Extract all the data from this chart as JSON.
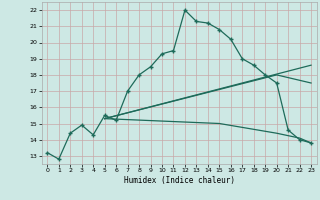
{
  "xlabel": "Humidex (Indice chaleur)",
  "bg_color": "#cde8e4",
  "grid_color": "#b8d8d2",
  "line_color": "#1e6b5a",
  "xlim": [
    -0.5,
    23.5
  ],
  "ylim": [
    12.5,
    22.5
  ],
  "xticks": [
    0,
    1,
    2,
    3,
    4,
    5,
    6,
    7,
    8,
    9,
    10,
    11,
    12,
    13,
    14,
    15,
    16,
    17,
    18,
    19,
    20,
    21,
    22,
    23
  ],
  "yticks": [
    13,
    14,
    15,
    16,
    17,
    18,
    19,
    20,
    21,
    22
  ],
  "line1_x": [
    0,
    1,
    2,
    3,
    4,
    5,
    6,
    7,
    8,
    9,
    10,
    11,
    12,
    13,
    14,
    15,
    16,
    17,
    18,
    19,
    20,
    21,
    22,
    23
  ],
  "line1_y": [
    13.2,
    12.8,
    14.4,
    14.9,
    14.3,
    15.5,
    15.2,
    17.0,
    18.0,
    18.5,
    19.3,
    19.5,
    22.0,
    21.3,
    21.2,
    20.8,
    20.2,
    19.0,
    18.6,
    18.0,
    17.5,
    14.6,
    14.0,
    13.8
  ],
  "line2_x": [
    5,
    23
  ],
  "line2_y": [
    15.3,
    18.6
  ],
  "line3_x": [
    5,
    20,
    23
  ],
  "line3_y": [
    15.3,
    18.0,
    17.5
  ],
  "line4_x": [
    5,
    15,
    20,
    22,
    23
  ],
  "line4_y": [
    15.3,
    15.0,
    14.4,
    14.1,
    13.8
  ]
}
